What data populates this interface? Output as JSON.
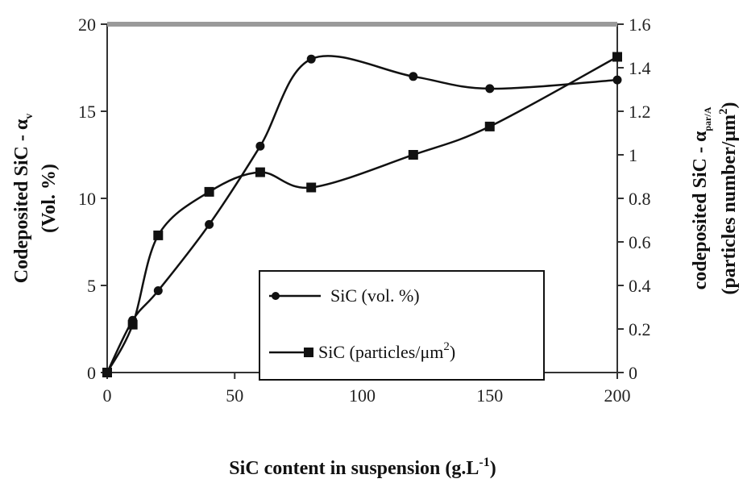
{
  "chart_data": {
    "type": "line",
    "x": [
      0,
      10,
      20,
      40,
      60,
      80,
      120,
      150,
      200
    ],
    "xlabel": "SiC content in suspension (g.L",
    "xlabel_sup": "-1",
    "xlabel_tail": ")",
    "xlim": [
      0,
      200
    ],
    "xticks": [
      "0",
      "50",
      "100",
      "150",
      "200"
    ],
    "ylabel_left_line1": "Codeposited SiC - α",
    "ylabel_left_sub": "v",
    "ylabel_left_line2": "(Vol. %)",
    "ylim_left": [
      0,
      20
    ],
    "yticks_left": [
      "0",
      "5",
      "10",
      "15",
      "20"
    ],
    "ylabel_right_line1": "codeposited SiC - α",
    "ylabel_right_sub": "par/A",
    "ylabel_right_line2a": "(particles number/μm",
    "ylabel_right_sup": "2",
    "ylabel_right_line2b": ")",
    "ylim_right": [
      0,
      1.6
    ],
    "yticks_right": [
      "0",
      "0.2",
      "0.4",
      "0.6",
      "0.8",
      "1",
      "1.2",
      "1.4",
      "1.6"
    ],
    "grid": false,
    "legend_position": "lower-center",
    "series": [
      {
        "name": "SiC (vol. %)",
        "axis": "left",
        "marker": "circle",
        "values": [
          0,
          3.0,
          4.7,
          8.5,
          13.0,
          18.0,
          17.0,
          16.3,
          16.8
        ]
      },
      {
        "name": "SiC (particles/μm",
        "name_sup": "2",
        "name_tail": ")",
        "axis": "right",
        "marker": "square",
        "values": [
          0,
          0.22,
          0.63,
          0.83,
          0.92,
          0.85,
          1.0,
          1.13,
          1.45
        ]
      }
    ]
  },
  "colors": {
    "line": "#111111",
    "frame_top": "#9a9a9a"
  }
}
